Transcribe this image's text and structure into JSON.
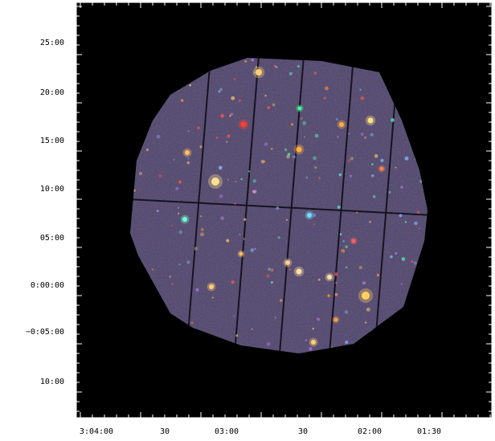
{
  "image": {
    "y_labels": [
      "25:00",
      "20:00",
      "15:00",
      "10:00",
      "05:00",
      "0:00:00",
      "−0:05:00",
      "10:00"
    ],
    "x_labels": [
      "3:04:00",
      "30",
      "03:00",
      "30",
      "02:00",
      "01:30"
    ]
  }
}
